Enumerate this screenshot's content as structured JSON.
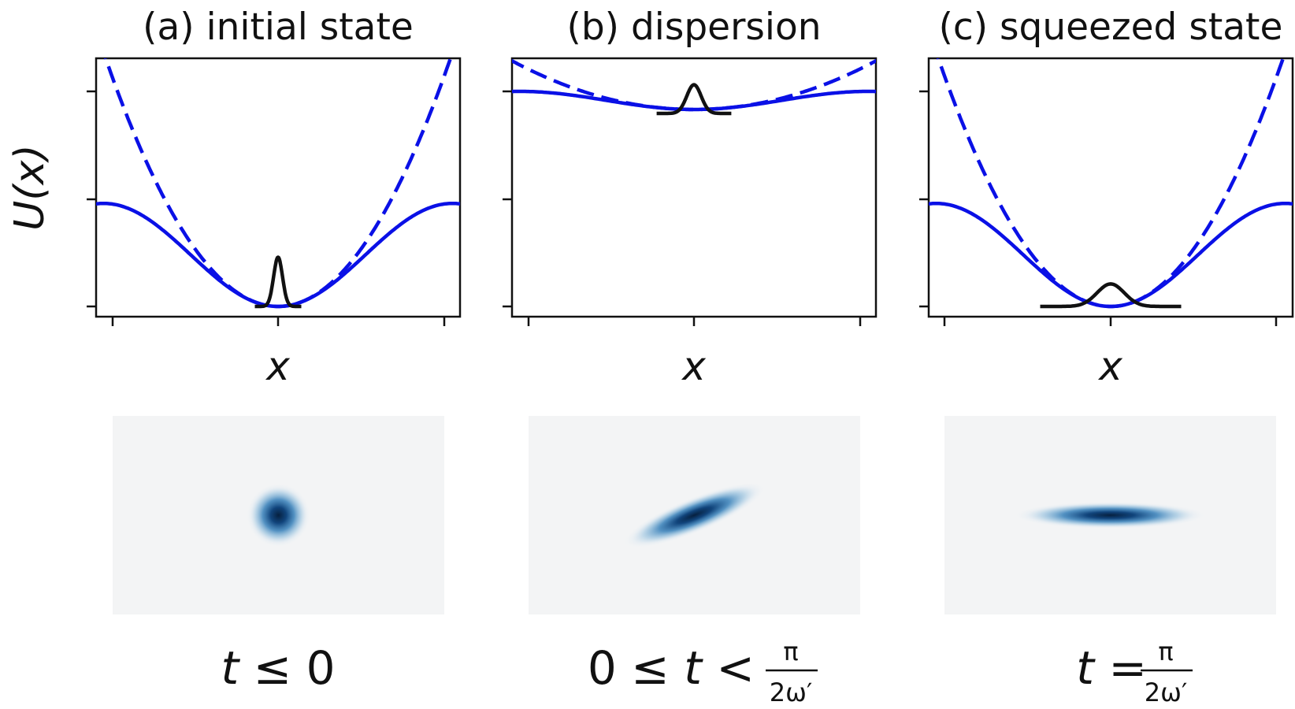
{
  "panels": [
    {
      "title": "(a) initial state",
      "xlabel": "x",
      "time_label": {
        "parts": [
          "t",
          " ≤ 0"
        ],
        "frac_num": "",
        "frac_den": ""
      },
      "potential_scale": 1.0,
      "wavepacket_width": 0.28,
      "wavepacket_height": 0.48,
      "blob": {
        "sx": 0.4,
        "sy": 0.4,
        "angle_deg": 0
      }
    },
    {
      "title": "(b) dispersion",
      "xlabel": "x",
      "time_label": {
        "parts": [
          "0 ≤ ",
          "t",
          " < "
        ],
        "frac_num": "π",
        "frac_den": "2ω′"
      },
      "potential_scale": 0.08,
      "wavepacket_width": 0.45,
      "wavepacket_height": 0.28,
      "blob": {
        "sx": 0.95,
        "sy": 0.22,
        "angle_deg": -22
      }
    },
    {
      "title": "(c) squeezed state",
      "xlabel": "x",
      "time_label": {
        "parts": [
          "t",
          " = "
        ],
        "frac_num": "π",
        "frac_den": "2ω′"
      },
      "potential_scale": 1.0,
      "wavepacket_width": 0.85,
      "wavepacket_height": 0.22,
      "blob": {
        "sx": 1.2,
        "sy": 0.17,
        "angle_deg": 0
      }
    }
  ],
  "ylabel": "U(x)",
  "colors": {
    "potential": "#0a10e6",
    "wavepacket": "#111111",
    "phase_dark": "#08306b"
  }
}
